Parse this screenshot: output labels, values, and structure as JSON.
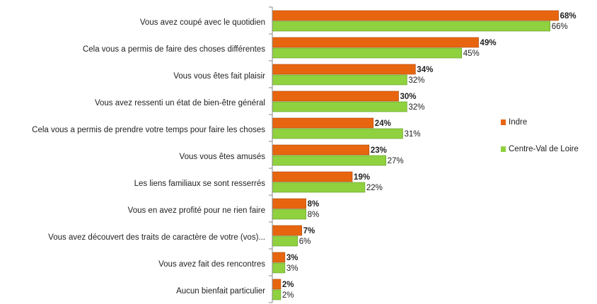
{
  "chart_data": {
    "type": "bar",
    "orientation": "horizontal",
    "categories": [
      "Vous avez coupé avec le quotidien",
      "Cela vous a permis de faire des choses différentes",
      "Vous vous êtes fait plaisir",
      "Vous avez ressenti un état de bien-être général",
      "Cela vous a permis de prendre votre temps pour faire les choses",
      "Vous vous êtes amusés",
      "Les liens familiaux se sont resserrés",
      "Vous en avez profité pour ne rien faire",
      "Vous avez découvert des traits de caractère de votre (vos)...",
      "Vous avez fait des rencontres",
      "Aucun bienfait particulier"
    ],
    "series": [
      {
        "name": "Indre",
        "color": "#e8650f",
        "values": [
          68,
          49,
          34,
          30,
          24,
          23,
          19,
          8,
          7,
          3,
          2
        ],
        "value_labels": [
          "68%",
          "49%",
          "34%",
          "30%",
          "24%",
          "23%",
          "19%",
          "8%",
          "7%",
          "3%",
          "2%"
        ]
      },
      {
        "name": "Centre-Val de Loire",
        "color": "#8fd13f",
        "values": [
          66,
          45,
          32,
          32,
          31,
          27,
          22,
          8,
          6,
          3,
          2
        ],
        "value_labels": [
          "66%",
          "45%",
          "32%",
          "32%",
          "31%",
          "27%",
          "22%",
          "8%",
          "6%",
          "3%",
          "2%"
        ]
      }
    ],
    "legend": "right"
  }
}
